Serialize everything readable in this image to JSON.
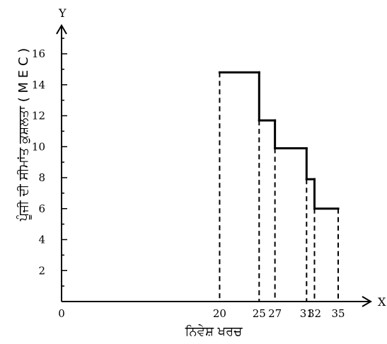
{
  "chart_data": {
    "type": "line",
    "step": true,
    "xlabel": "ਨਿਵੇਸ਼ ਖਰਚ",
    "ylabel": "ਪੂੰਜੀ ਦੀ ਸੀਮਾਂਤ ਕੁਸ਼ਲਤਾ ( M E C )",
    "x_axis_letter": "X",
    "y_axis_letter": "Y",
    "x_ticks": [
      "0",
      "20",
      "25",
      "27",
      "31",
      "32",
      "35"
    ],
    "y_ticks": [
      "2",
      "4",
      "6",
      "8",
      "10",
      "12",
      "14",
      "16"
    ],
    "xlim": [
      0,
      35
    ],
    "ylim": [
      0,
      16
    ],
    "grid": false,
    "segments": [
      {
        "x_start": 20,
        "x_end": 25,
        "y": 14.8
      },
      {
        "x_start": 25,
        "x_end": 27,
        "y": 11.7
      },
      {
        "x_start": 27,
        "x_end": 31,
        "y": 9.9
      },
      {
        "x_start": 31,
        "x_end": 32,
        "y": 7.9
      },
      {
        "x_start": 32,
        "x_end": 35,
        "y": 6.0
      }
    ],
    "dashed_drops_at_x": [
      20,
      25,
      27,
      31,
      32,
      35
    ]
  }
}
